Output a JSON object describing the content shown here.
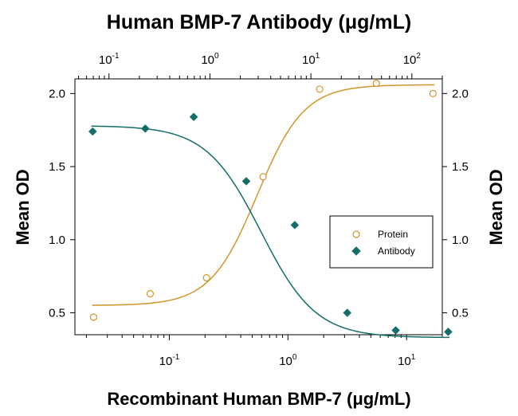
{
  "chart_data": {
    "type": "scatter",
    "title_top": "Human BMP-7 Antibody (μg/mL)",
    "xlabel": "Recombinant Human BMP-7 (μg/mL)",
    "ylabel_left": "Mean OD",
    "ylabel_right": "Mean OD",
    "ylim": [
      0.35,
      2.1
    ],
    "y_ticks": [
      0.5,
      1.0,
      1.5,
      2.0
    ],
    "y_tick_labels": [
      "0.5",
      "1.0",
      "1.5",
      "2.0"
    ],
    "x_bottom": {
      "scale": "log",
      "lim": [
        0.016,
        20
      ],
      "ticks": [
        {
          "value": 0.1,
          "base": "10",
          "exp": "-1"
        },
        {
          "value": 1,
          "base": "10",
          "exp": "0"
        },
        {
          "value": 10,
          "base": "10",
          "exp": "1"
        }
      ]
    },
    "x_top": {
      "scale": "log",
      "lim": [
        0.046,
        200
      ],
      "ticks": [
        {
          "value": 0.1,
          "base": "10",
          "exp": "-1"
        },
        {
          "value": 1,
          "base": "10",
          "exp": "0"
        },
        {
          "value": 10,
          "base": "10",
          "exp": "1"
        },
        {
          "value": 100,
          "base": "10",
          "exp": "2"
        }
      ]
    },
    "legend": {
      "position": "right"
    },
    "grid": false,
    "series": [
      {
        "name": "Protein",
        "axis": "bottom",
        "marker": "circle-open",
        "color": "#d4952a",
        "x": [
          0.023,
          0.069,
          0.206,
          0.617,
          1.85,
          5.56,
          16.7
        ],
        "y": [
          0.47,
          0.63,
          0.74,
          1.43,
          2.03,
          2.07,
          2.0
        ],
        "fit": {
          "bottom": 0.55,
          "top": 2.06,
          "ec50": 0.55,
          "hill": 2.2
        }
      },
      {
        "name": "Antibody",
        "axis": "top",
        "marker": "diamond-filled",
        "color": "#136e6a",
        "x": [
          0.069,
          0.229,
          0.691,
          2.29,
          6.92,
          22.9,
          69.2,
          229
        ],
        "y": [
          1.74,
          1.76,
          1.84,
          1.4,
          1.1,
          0.5,
          0.38,
          0.37
        ],
        "fit": {
          "bottom": 0.33,
          "top": 1.78,
          "ec50": 3.2,
          "hill": 1.6
        }
      }
    ]
  }
}
